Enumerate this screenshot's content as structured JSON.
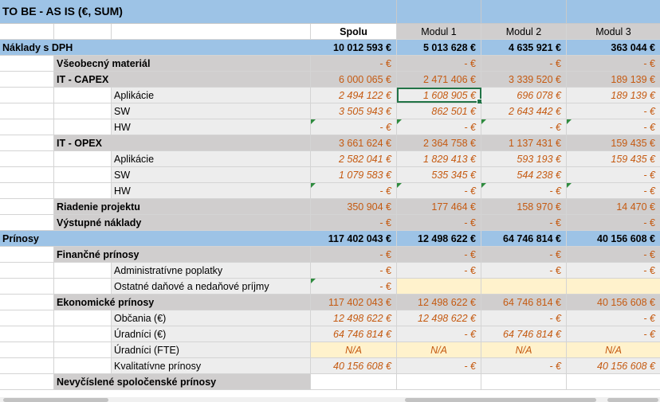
{
  "title": "TO BE - AS IS (€, SUM)",
  "columns": [
    "Spolu",
    "Modul 1",
    "Modul 2",
    "Modul 3"
  ],
  "sections": {
    "naklady": {
      "label": "Náklady s DPH",
      "values": [
        "10 012 593 €",
        "5 013 628 €",
        "4 635 921 €",
        "363 044 €"
      ]
    },
    "prinosy": {
      "label": "Prínosy",
      "values": [
        "117 402 043 €",
        "12 498 622 €",
        "64 746 814 €",
        "40 156 608 €"
      ]
    }
  },
  "rows": {
    "vseobecny": {
      "label": "Všeobecný materiál",
      "values": [
        "- €",
        "- €",
        "- €",
        "- €"
      ]
    },
    "it_capex": {
      "label": "IT - CAPEX",
      "values": [
        "6 000 065 €",
        "2 471 406 €",
        "3 339 520 €",
        "189 139 €"
      ]
    },
    "capex_aplikacie": {
      "label": "Aplikácie",
      "values": [
        "2 494 122 €",
        "1 608 905 €",
        "696 078 €",
        "189 139 €"
      ]
    },
    "capex_sw": {
      "label": "SW",
      "values": [
        "3 505 943 €",
        "862 501 €",
        "2 643 442 €",
        "- €"
      ]
    },
    "capex_hw": {
      "label": "HW",
      "values": [
        "- €",
        "- €",
        "- €",
        "- €"
      ]
    },
    "it_opex": {
      "label": "IT - OPEX",
      "values": [
        "3 661 624 €",
        "2 364 758 €",
        "1 137 431 €",
        "159 435 €"
      ]
    },
    "opex_aplikacie": {
      "label": "Aplikácie",
      "values": [
        "2 582 041 €",
        "1 829 413 €",
        "593 193 €",
        "159 435 €"
      ]
    },
    "opex_sw": {
      "label": "SW",
      "values": [
        "1 079 583 €",
        "535 345 €",
        "544 238 €",
        "- €"
      ]
    },
    "opex_hw": {
      "label": "HW",
      "values": [
        "- €",
        "- €",
        "- €",
        "- €"
      ]
    },
    "riadenie": {
      "label": "Riadenie projektu",
      "values": [
        "350 904 €",
        "177 464 €",
        "158 970 €",
        "14 470 €"
      ]
    },
    "vystupne": {
      "label": "Výstupné náklady",
      "values": [
        "- €",
        "- €",
        "- €",
        "- €"
      ]
    },
    "financne": {
      "label": "Finančné prínosy",
      "values": [
        "- €",
        "- €",
        "- €",
        "- €"
      ]
    },
    "admin": {
      "label": "Administratívne poplatky",
      "values": [
        "- €",
        "- €",
        "- €",
        "- €"
      ]
    },
    "ostatne": {
      "label": "Ostatné daňové a nedaňové príjmy",
      "values": [
        "- €",
        "",
        "",
        ""
      ]
    },
    "ekonomicke": {
      "label": "Ekonomické prínosy",
      "values": [
        "117 402 043 €",
        "12 498 622 €",
        "64 746 814 €",
        "40 156 608 €"
      ]
    },
    "obcania": {
      "label": "Občania (€)",
      "values": [
        "12 498 622 €",
        "12 498 622 €",
        "- €",
        "- €"
      ]
    },
    "uradnici": {
      "label": "Úradníci (€)",
      "values": [
        "64 746 814 €",
        "- €",
        "64 746 814 €",
        "- €"
      ]
    },
    "uradnici_fte": {
      "label": "Úradníci (FTE)",
      "values": [
        "N/A",
        "N/A",
        "N/A",
        "N/A"
      ]
    },
    "kvalitativne": {
      "label": "Kvalitatívne prínosy",
      "values": [
        "40 156 608 €",
        "- €",
        "- €",
        "40 156 608 €"
      ]
    },
    "nevycislene": {
      "label": "Nevyčíslené spoločenské prínosy",
      "values": [
        "",
        "",
        "",
        ""
      ]
    }
  },
  "colors": {
    "blue": "#9dc3e6",
    "gray": "#d0cece",
    "orange": "#c55a11",
    "yellow": "#fff2cc",
    "selection": "#217346"
  }
}
